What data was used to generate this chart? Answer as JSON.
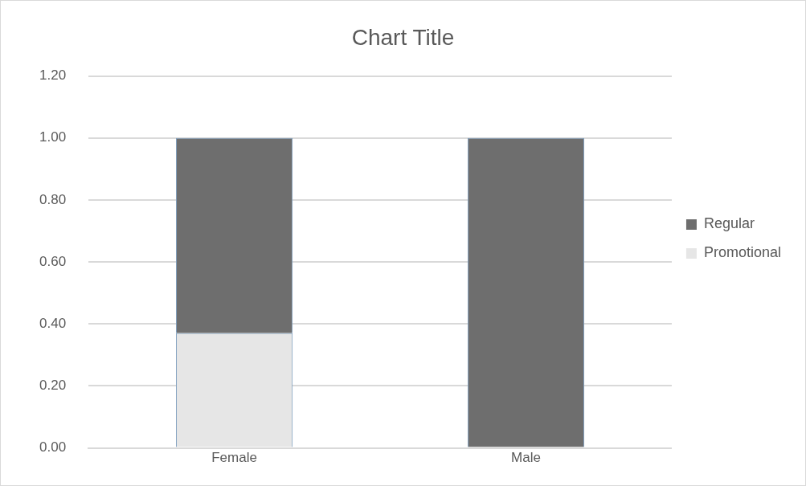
{
  "chart_data": {
    "type": "bar",
    "title": "Chart Title",
    "categories": [
      "Female",
      "Male"
    ],
    "stacked": true,
    "series": [
      {
        "name": "Promotional",
        "color": "#e6e6e6",
        "values": [
          0.37,
          0
        ]
      },
      {
        "name": "Regular",
        "color": "#6e6e6e",
        "values": [
          0.63,
          1.0
        ]
      }
    ],
    "ylim": [
      0,
      1.2
    ],
    "yticks": [
      {
        "value": 0,
        "label": "0.00"
      },
      {
        "value": 0.2,
        "label": "0.20"
      },
      {
        "value": 0.4,
        "label": "0.40"
      },
      {
        "value": 0.6,
        "label": "0.60"
      },
      {
        "value": 0.8,
        "label": "0.80"
      },
      {
        "value": 1.0,
        "label": "1.00"
      },
      {
        "value": 1.2,
        "label": "1.20"
      }
    ],
    "grid": "y",
    "legend": "right"
  }
}
